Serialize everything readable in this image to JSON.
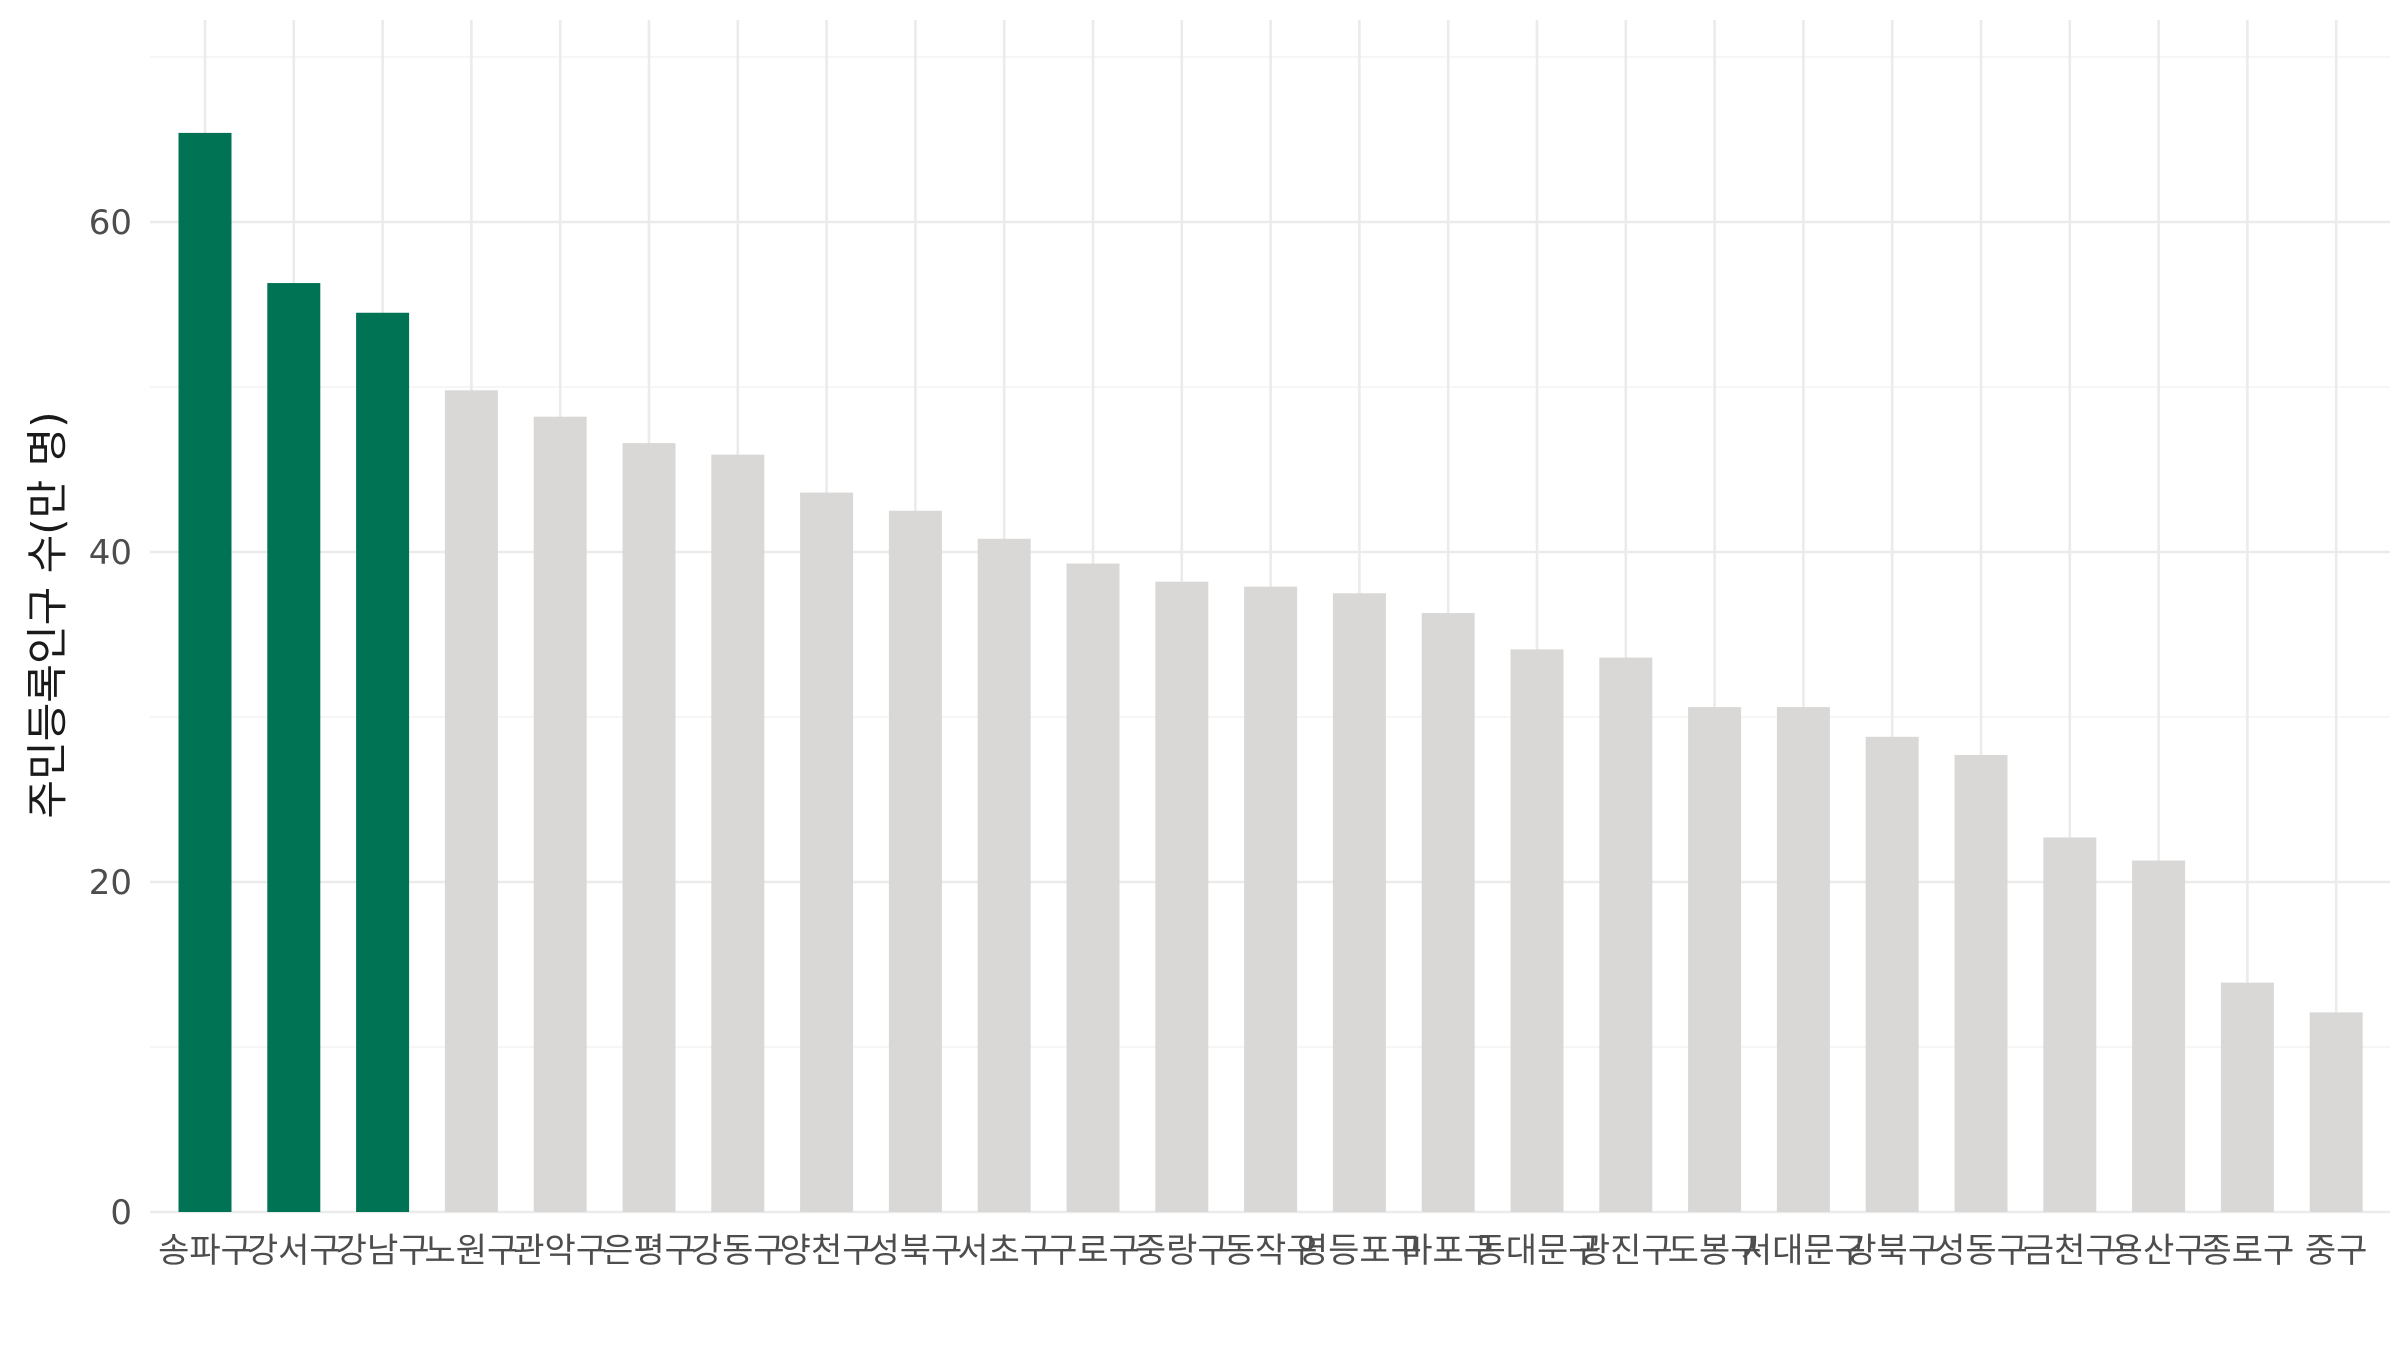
{
  "chart_data": {
    "type": "bar",
    "categories": [
      "송파구",
      "강서구",
      "강남구",
      "노원구",
      "관악구",
      "은평구",
      "강동구",
      "양천구",
      "성북구",
      "서초구",
      "구로구",
      "중랑구",
      "동작구",
      "영등포구",
      "마포구",
      "동대문구",
      "광진구",
      "도봉구",
      "서대문구",
      "강북구",
      "성동구",
      "금천구",
      "용산구",
      "종로구",
      "중구"
    ],
    "values": [
      65.4,
      56.3,
      54.5,
      49.8,
      48.2,
      46.6,
      45.9,
      43.6,
      42.5,
      40.8,
      39.3,
      38.2,
      37.9,
      37.5,
      36.3,
      34.1,
      33.6,
      30.6,
      30.6,
      28.8,
      27.7,
      22.7,
      21.3,
      13.9,
      12.1
    ],
    "highlight_count": 3,
    "colors": {
      "highlight": "#007354",
      "default": "#d9d8d6"
    },
    "title": "",
    "xlabel": "",
    "ylabel": "주민등록인구 수(만 명)",
    "ylim": [
      0,
      70
    ],
    "yticks": [
      0,
      20,
      40,
      60
    ],
    "ytick_labels": [
      "0",
      "20",
      "40",
      "60"
    ],
    "grid": true,
    "legend": "none"
  }
}
